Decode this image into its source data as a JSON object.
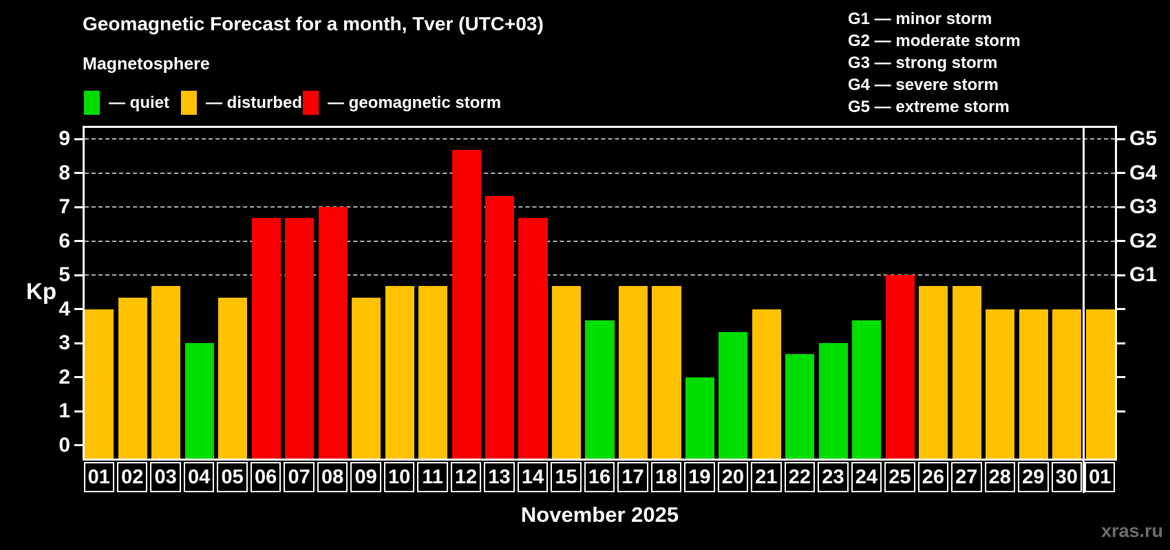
{
  "header": {
    "title": "Geomagnetic Forecast for a month, Tver (UTC+03)",
    "subtitle": "Magnetosphere",
    "legend": [
      {
        "key": "quiet",
        "label": "— quiet"
      },
      {
        "key": "disturbed",
        "label": "— disturbed"
      },
      {
        "key": "storm",
        "label": "— geomagnetic storm"
      }
    ],
    "storm_scale": [
      "G1 — minor storm",
      "G2 — moderate storm",
      "G3 — strong storm",
      "G4 — severe storm",
      "G5 — extreme storm"
    ]
  },
  "chart_data": {
    "type": "bar",
    "title": "Geomagnetic Forecast for a month, Tver (UTC+03)",
    "subtitle": "Magnetosphere",
    "xlabel": "November 2025",
    "ylabel": "Kp",
    "ylim": [
      0,
      9.5
    ],
    "yticks": [
      0,
      1,
      2,
      3,
      4,
      5,
      6,
      7,
      8,
      9
    ],
    "grid_kp": [
      5,
      6,
      7,
      8,
      9
    ],
    "right_axis": [
      {
        "label": "G1",
        "kp": 5
      },
      {
        "label": "G2",
        "kp": 6
      },
      {
        "label": "G3",
        "kp": 7
      },
      {
        "label": "G4",
        "kp": 8
      },
      {
        "label": "G5",
        "kp": 9
      }
    ],
    "legend_position": "top-left",
    "categories": [
      "01",
      "02",
      "03",
      "04",
      "05",
      "06",
      "07",
      "08",
      "09",
      "10",
      "11",
      "12",
      "13",
      "14",
      "15",
      "16",
      "17",
      "18",
      "19",
      "20",
      "21",
      "22",
      "23",
      "24",
      "25",
      "26",
      "27",
      "28",
      "29",
      "30",
      "01"
    ],
    "values": [
      4,
      4.33,
      4.67,
      3,
      4.33,
      6.67,
      6.67,
      7,
      4.33,
      4.67,
      4.67,
      8.67,
      7.33,
      6.67,
      4.67,
      3.67,
      4.67,
      4.67,
      2,
      3.33,
      4,
      2.67,
      3,
      3.67,
      5,
      4.67,
      4.67,
      4,
      4,
      4,
      4
    ],
    "statuses": [
      "disturbed",
      "disturbed",
      "disturbed",
      "quiet",
      "disturbed",
      "storm",
      "storm",
      "storm",
      "disturbed",
      "disturbed",
      "disturbed",
      "storm",
      "storm",
      "storm",
      "disturbed",
      "quiet",
      "disturbed",
      "disturbed",
      "quiet",
      "quiet",
      "disturbed",
      "quiet",
      "quiet",
      "quiet",
      "storm",
      "disturbed",
      "disturbed",
      "disturbed",
      "disturbed",
      "disturbed",
      "disturbed"
    ],
    "status_colors": {
      "quiet": "#00dd00",
      "disturbed": "#ffc100",
      "storm": "#fb0000"
    },
    "month_separator_after_index": 29
  },
  "footer": {
    "month_label": "November 2025",
    "watermark": "xras.ru"
  }
}
